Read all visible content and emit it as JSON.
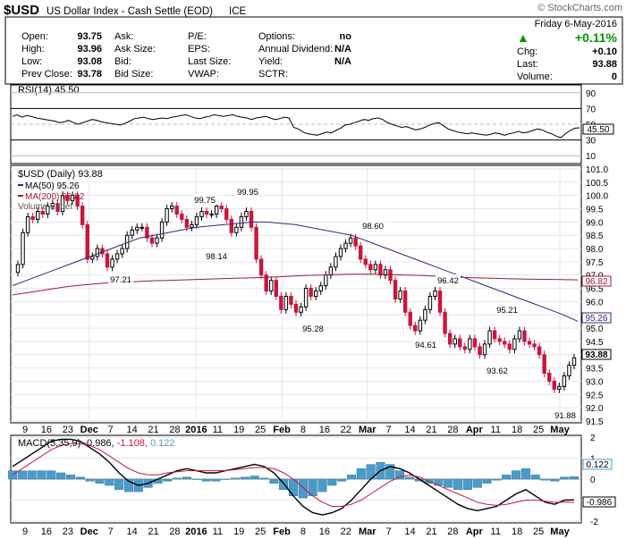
{
  "header": {
    "symbol": "$USD",
    "name": "US Dollar Index - Cash Settle (EOD)",
    "exchange": "ICE",
    "watermark": "© StockCharts.com",
    "date": "Friday  6-May-2016",
    "quote_rows": [
      [
        "Open:",
        "93.75",
        "Ask:",
        "",
        "P/E:",
        "",
        "Options:",
        "no"
      ],
      [
        "High:",
        "93.96",
        "Ask Size:",
        "",
        "EPS:",
        "",
        "Annual Dividend:",
        "N/A"
      ],
      [
        "Low:",
        "93.08",
        "Bid:",
        "",
        "Last Size:",
        "",
        "Yield:",
        "N/A"
      ],
      [
        "Prev Close:",
        "93.78",
        "Bid Size:",
        "",
        "VWAP:",
        "",
        "SCTR:",
        ""
      ]
    ],
    "change_pct": "+0.11%",
    "change_pct_arrow": "▲",
    "side_rows": [
      [
        "Chg:",
        "+0.10"
      ],
      [
        "Last:",
        "93.88"
      ],
      [
        "Volume:",
        "0"
      ]
    ]
  },
  "colors": {
    "up_candle": "#ffffff",
    "down_candle": "#c8163c",
    "ma50": "#2b2b7a",
    "ma200": "#9b1b2e",
    "macd_line": "#000000",
    "signal_line": "#c8163c",
    "histogram": "#4a9bc8",
    "rsi_line": "#000000",
    "accent_up": "#009900"
  },
  "chart_data": [
    {
      "type": "line",
      "title": "RSI(14) 45.50",
      "series": [
        {
          "name": "RSI(14)",
          "values": [
            60,
            62,
            59,
            61,
            60,
            58,
            57,
            56,
            55,
            54,
            52,
            53,
            55,
            52,
            50,
            52,
            54,
            56,
            55,
            53,
            52,
            51,
            50,
            49,
            51,
            54,
            57,
            58,
            59,
            57,
            56,
            57,
            58,
            57,
            59,
            60,
            61,
            62,
            60,
            58,
            57,
            59,
            60,
            62,
            61,
            60,
            61,
            62,
            60,
            59,
            58,
            56,
            58,
            59,
            60,
            58,
            56,
            57,
            59,
            58,
            46,
            44,
            40,
            38,
            37,
            36,
            38,
            40,
            39,
            42,
            45,
            49,
            50,
            52,
            54,
            56,
            55,
            57,
            58,
            56,
            52,
            50,
            48,
            46,
            47,
            45,
            43,
            44,
            46,
            49,
            51,
            52,
            48,
            44,
            42,
            40,
            39,
            38,
            39,
            38,
            37,
            36,
            37,
            39,
            38,
            36,
            38,
            39,
            41,
            39,
            40,
            42,
            44,
            43,
            40,
            38,
            35,
            33,
            38,
            42,
            45,
            45.5
          ]
        }
      ],
      "ylim": [
        0,
        100
      ],
      "gridlines": [
        10,
        30,
        50,
        70,
        90
      ],
      "last_value_label": "45.50"
    },
    {
      "type": "candlestick",
      "title": "$USD (Daily) 93.88",
      "legend": [
        "MA(50) 95.26",
        "MA(200) 96.82",
        "Volume undef"
      ],
      "x_tick_labels": [
        "9",
        "16",
        "23",
        "Dec",
        "7",
        "14",
        "21",
        "28",
        "2016",
        "11",
        "19",
        "25",
        "Feb",
        "8",
        "16",
        "22",
        "Mar",
        "7",
        "14",
        "21",
        "28",
        "Apr",
        "11",
        "18",
        "25",
        "May"
      ],
      "y_tick_labels": [
        "91.5",
        "92.0",
        "92.5",
        "93.0",
        "93.5",
        "94.0",
        "94.5",
        "95.0",
        "95.5",
        "96.0",
        "96.5",
        "97.0",
        "97.5",
        "98.0",
        "98.5",
        "99.0",
        "99.5",
        "100.0",
        "100.5",
        "101.0"
      ],
      "ylim": [
        91.5,
        101.0
      ],
      "close": [
        97.4,
        98.6,
        99.2,
        99.1,
        99.4,
        99.3,
        99.6,
        99.7,
        99.4,
        100.0,
        99.8,
        100.0,
        99.6,
        98.9,
        97.6,
        97.7,
        98.0,
        97.8,
        97.3,
        97.6,
        97.8,
        98.0,
        98.5,
        98.7,
        98.8,
        98.8,
        98.4,
        98.2,
        98.4,
        99.0,
        99.5,
        99.6,
        99.3,
        99.1,
        98.8,
        98.9,
        99.2,
        99.4,
        99.3,
        99.3,
        99.6,
        99.5,
        99.1,
        98.6,
        98.8,
        99.2,
        99.4,
        98.8,
        97.6,
        97.0,
        96.4,
        96.8,
        96.2,
        95.7,
        96.2,
        95.9,
        95.6,
        95.8,
        96.5,
        96.2,
        96.4,
        96.6,
        97.0,
        97.3,
        97.7,
        98.0,
        98.2,
        98.4,
        98.1,
        97.6,
        97.4,
        97.2,
        97.4,
        97.0,
        97.2,
        96.8,
        96.1,
        96.4,
        95.6,
        95.1,
        94.9,
        95.3,
        95.7,
        96.2,
        96.4,
        95.6,
        94.8,
        94.4,
        94.6,
        94.3,
        94.2,
        94.6,
        94.3,
        94.0,
        94.4,
        94.9,
        94.6,
        94.5,
        94.4,
        94.2,
        94.6,
        94.9,
        94.5,
        94.4,
        94.3,
        94.0,
        93.3,
        93.0,
        92.7,
        92.8,
        93.2,
        93.6,
        93.88
      ],
      "annotations": [
        {
          "label": "99.75",
          "value": 99.75
        },
        {
          "label": "99.95",
          "value": 99.95
        },
        {
          "label": "98.14",
          "value": 98.14
        },
        {
          "label": "97.21",
          "value": 97.21
        },
        {
          "label": "98.60",
          "value": 98.6
        },
        {
          "label": "95.28",
          "value": 95.28
        },
        {
          "label": "96.42",
          "value": 96.42
        },
        {
          "label": "94.61",
          "value": 94.61
        },
        {
          "label": "95.21",
          "value": 95.21
        },
        {
          "label": "93.62",
          "value": 93.62
        },
        {
          "label": "91.88",
          "value": 91.88
        }
      ],
      "ma50": {
        "name": "MA(50) 95.26",
        "values": [
          96.6,
          96.8,
          97.0,
          97.2,
          97.4,
          97.6,
          97.8,
          98.0,
          98.2,
          98.4,
          98.5,
          98.6,
          98.7,
          98.8,
          98.85,
          98.9,
          98.95,
          99.0,
          99.0,
          98.95,
          98.9,
          98.8,
          98.7,
          98.6,
          98.5,
          98.3,
          98.1,
          97.9,
          97.7,
          97.5,
          97.3,
          97.1,
          96.9,
          96.7,
          96.5,
          96.3,
          96.1,
          95.9,
          95.7,
          95.5,
          95.26
        ],
        "last_value_label": "95.26"
      },
      "ma200": {
        "name": "MA(200) 96.82",
        "values": [
          96.25,
          96.35,
          96.45,
          96.55,
          96.62,
          96.68,
          96.72,
          96.75,
          96.78,
          96.8,
          96.82,
          96.84,
          96.86,
          96.88,
          96.9,
          96.92,
          96.95,
          96.98,
          97.0,
          97.02,
          97.03,
          97.03,
          97.02,
          97.0,
          96.98,
          96.95,
          96.92,
          96.9,
          96.88,
          96.86,
          96.85,
          96.84,
          96.83,
          96.82
        ],
        "last_value_label": "96.82"
      },
      "last_value_label": "93.88"
    },
    {
      "type": "line",
      "title": "MACD(5,35,9) -0.986, -1.108, 0.122",
      "title_parts": [
        "MACD(5,35,9)",
        "-0.986,",
        "-1.108,",
        "0.122"
      ],
      "ylim": [
        -2,
        2
      ],
      "y_tick_labels": [
        "2",
        "1",
        "0",
        "-1",
        "-2"
      ],
      "macd": [
        0.6,
        0.9,
        1.2,
        1.5,
        1.8,
        1.9,
        1.9,
        1.8,
        1.5,
        1.2,
        0.8,
        0.3,
        -0.1,
        -0.3,
        -0.2,
        0.0,
        0.2,
        0.4,
        0.5,
        0.4,
        0.3,
        0.3,
        0.4,
        0.5,
        0.6,
        0.7,
        0.6,
        0.3,
        -0.2,
        -0.8,
        -1.3,
        -1.6,
        -1.7,
        -1.6,
        -1.4,
        -1.0,
        -0.5,
        0.0,
        0.4,
        0.6,
        0.5,
        0.3,
        0.0,
        -0.3,
        -0.6,
        -0.9,
        -1.2,
        -1.4,
        -1.5,
        -1.4,
        -1.3,
        -1.0,
        -0.7,
        -0.5,
        -0.8,
        -1.1,
        -1.2,
        -1.0,
        -0.986
      ],
      "signal": [
        0.2,
        0.5,
        0.8,
        1.1,
        1.4,
        1.6,
        1.7,
        1.7,
        1.6,
        1.4,
        1.1,
        0.8,
        0.5,
        0.3,
        0.2,
        0.2,
        0.3,
        0.35,
        0.4,
        0.4,
        0.4,
        0.4,
        0.4,
        0.45,
        0.5,
        0.55,
        0.55,
        0.5,
        0.3,
        0.0,
        -0.4,
        -0.8,
        -1.1,
        -1.3,
        -1.3,
        -1.2,
        -1.0,
        -0.7,
        -0.4,
        -0.1,
        0.1,
        0.2,
        0.1,
        -0.1,
        -0.3,
        -0.5,
        -0.7,
        -0.9,
        -1.1,
        -1.2,
        -1.25,
        -1.2,
        -1.1,
        -1.0,
        -1.0,
        -1.05,
        -1.1,
        -1.1,
        -1.108
      ],
      "histogram": [
        0.4,
        0.4,
        0.4,
        0.4,
        0.4,
        0.3,
        0.2,
        0.1,
        -0.1,
        -0.2,
        -0.3,
        -0.5,
        -0.6,
        -0.6,
        -0.4,
        -0.2,
        -0.1,
        0.05,
        0.1,
        0.0,
        -0.1,
        -0.1,
        0.0,
        0.05,
        0.1,
        0.15,
        0.05,
        -0.2,
        -0.5,
        -0.8,
        -0.9,
        -0.8,
        -0.6,
        -0.3,
        -0.1,
        0.2,
        0.5,
        0.7,
        0.8,
        0.7,
        0.4,
        0.1,
        -0.1,
        -0.2,
        -0.3,
        -0.4,
        -0.5,
        -0.5,
        -0.4,
        -0.2,
        -0.05,
        0.2,
        0.4,
        0.5,
        0.2,
        -0.05,
        -0.1,
        0.1,
        0.122
      ],
      "last_value_labels": [
        "0.122",
        "-0.986"
      ]
    }
  ]
}
